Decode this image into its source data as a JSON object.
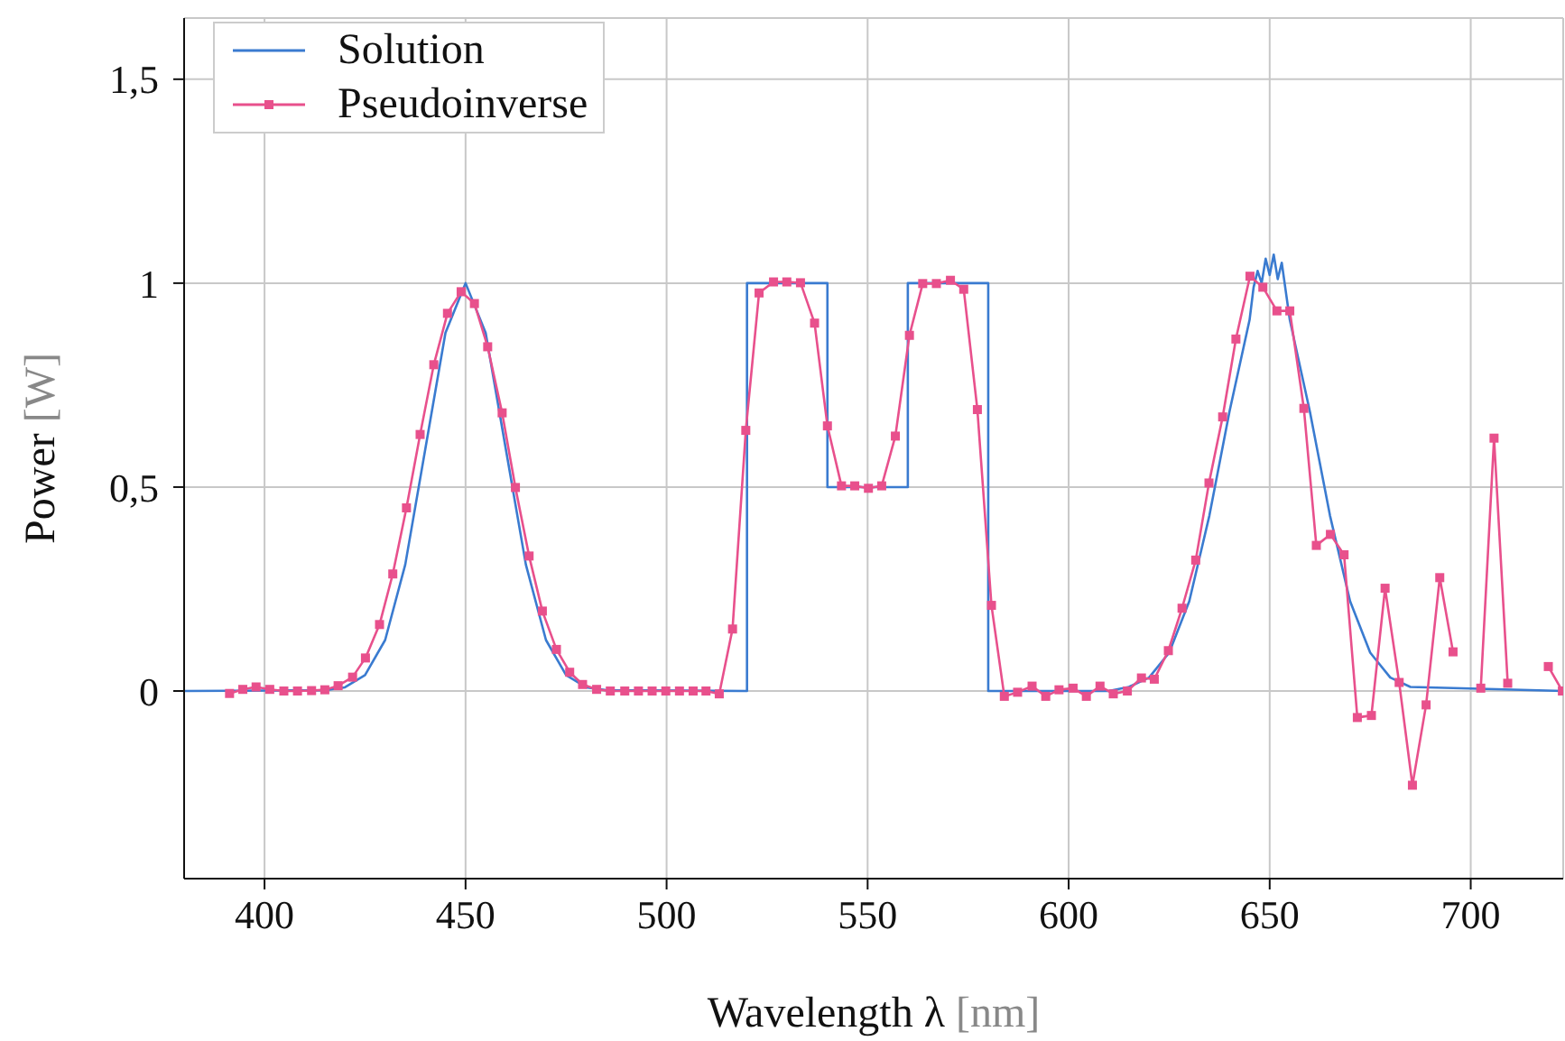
{
  "chart_data": {
    "type": "line",
    "xlabel": "Wavelength λ [nm]",
    "ylabel": "Power [W]",
    "xlim": [
      380,
      723
    ],
    "ylim": [
      -0.46,
      1.65
    ],
    "xticks": [
      400,
      450,
      500,
      550,
      600,
      650,
      700
    ],
    "yticks": [
      0,
      {
        "value": 0.5,
        "label": "0,5"
      },
      1,
      {
        "value": 1.5,
        "label": "1,5"
      }
    ],
    "grid": true,
    "legend": "top left",
    "line_style": "solid",
    "series": [
      {
        "name": "Solution",
        "color": "#3a7bd0",
        "marker": "none",
        "x": [
          380,
          415,
          420,
          425,
          430,
          435,
          440,
          445,
          450,
          455,
          460,
          465,
          470,
          475,
          480,
          485,
          520,
          520,
          540,
          540,
          560,
          560,
          580,
          580,
          610,
          615,
          620,
          625,
          630,
          635,
          640,
          645,
          646,
          647,
          648,
          649,
          650,
          651,
          652,
          653,
          654,
          655,
          660,
          665,
          670,
          675,
          680,
          685,
          723
        ],
        "values": [
          0,
          0.002,
          0.009,
          0.039,
          0.125,
          0.31,
          0.594,
          0.878,
          1,
          0.878,
          0.594,
          0.31,
          0.125,
          0.039,
          0.009,
          0.002,
          0,
          1,
          1,
          0.5,
          0.5,
          1,
          1,
          0,
          0,
          0.01,
          0.033,
          0.094,
          0.22,
          0.43,
          0.685,
          0.91,
          0.99,
          1.03,
          1.0,
          1.06,
          1.02,
          1.07,
          1.01,
          1.05,
          0.98,
          0.91,
          0.685,
          0.43,
          0.22,
          0.094,
          0.033,
          0.01,
          0
        ]
      },
      {
        "name": "Pseudoinverse",
        "color": "#e8508c",
        "marker": "square",
        "x": [
          391.3,
          394.6,
          397.9,
          401.3,
          404.8,
          408.2,
          411.7,
          415.0,
          418.3,
          421.9,
          425.1,
          428.6,
          431.9,
          435.3,
          438.7,
          442.1,
          445.5,
          448.9,
          452.2,
          455.5,
          459.1,
          462.4,
          465.8,
          469.1,
          472.6,
          475.9,
          479.1,
          482.6,
          486.0,
          489.6,
          493.0,
          496.4,
          499.8,
          503.2,
          506.6,
          509.8,
          513.1,
          516.4,
          519.7,
          523.0,
          526.6,
          529.9,
          533.3,
          536.8,
          540.0,
          543.5,
          546.8,
          550.2,
          553.5,
          556.9,
          560.4,
          563.7,
          567.1,
          570.6,
          573.9,
          577.3,
          580.8,
          584.0,
          587.3,
          590.9,
          594.3,
          597.6,
          601.1,
          604.4,
          607.8,
          611.1,
          614.6,
          618.1,
          621.3,
          624.8,
          628.2,
          631.6,
          634.9,
          638.3,
          641.6,
          645.1,
          648.3,
          651.8,
          655.0,
          658.5,
          661.6,
          665.1,
          668.5,
          671.8,
          675.3,
          678.7,
          682.2,
          685.5,
          688.9,
          692.3,
          695.6,
          699.0,
          702.5,
          705.8,
          709.2,
          712.5,
          716.0,
          719.3,
          722.8
        ],
        "values": [
          -0.006,
          0.004,
          0.01,
          0.004,
          0,
          0,
          0.001,
          0.003,
          0.013,
          0.034,
          0.081,
          0.163,
          0.287,
          0.449,
          0.629,
          0.8,
          0.926,
          0.979,
          0.95,
          0.844,
          0.682,
          0.499,
          0.331,
          0.196,
          0.102,
          0.046,
          0.016,
          0.004,
          0,
          0,
          0,
          0,
          0,
          0,
          0,
          0,
          -0.007,
          0.152,
          0.639,
          0.976,
          1.003,
          1.003,
          1.001,
          0.902,
          0.65,
          0.503,
          0.503,
          0.497,
          0.503,
          0.625,
          0.872,
          0.999,
          0.999,
          1.007,
          0.985,
          0.69,
          0.21,
          -0.013,
          -0.003,
          0.012,
          -0.013,
          0.003,
          0.007,
          -0.013,
          0.012,
          -0.007,
          0,
          0.032,
          0.029,
          0.099,
          0.203,
          0.321,
          0.51,
          0.672,
          0.863,
          1.017,
          0.99,
          0.932,
          0.932,
          0.693,
          0.357,
          0.384,
          0.334,
          -0.065,
          -0.06,
          0.252,
          0.021,
          -0.231,
          -0.034,
          0.278,
          0.096,
          null,
          0.007,
          0.62,
          0.019,
          null,
          null,
          0.06,
          0
        ]
      }
    ]
  }
}
